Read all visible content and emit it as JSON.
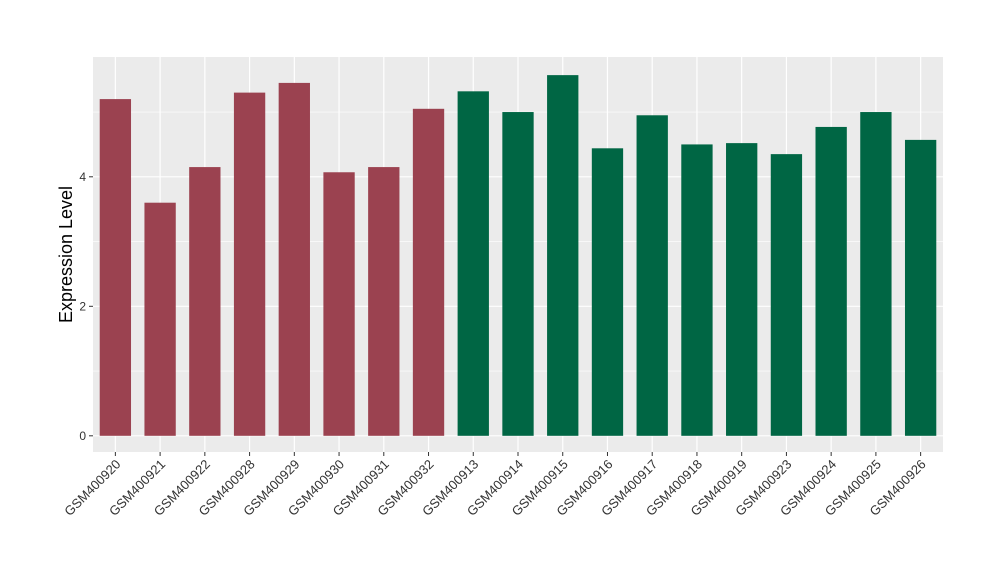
{
  "chart_data": {
    "type": "bar",
    "title": "",
    "xlabel": "",
    "ylabel": "Expression Level",
    "ylim": [
      -0.25,
      5.85
    ],
    "yticks": [
      0,
      2,
      4
    ],
    "grid": true,
    "legend": "none",
    "colors": {
      "group_a": "#9b4250",
      "group_b": "#006644",
      "panel_bg": "#ebebeb",
      "grid": "#ffffff"
    },
    "categories": [
      "GSM400920",
      "GSM400921",
      "GSM400922",
      "GSM400928",
      "GSM400929",
      "GSM400930",
      "GSM400931",
      "GSM400932",
      "GSM400913",
      "GSM400914",
      "GSM400915",
      "GSM400916",
      "GSM400917",
      "GSM400918",
      "GSM400919",
      "GSM400923",
      "GSM400924",
      "GSM400925",
      "GSM400926"
    ],
    "values": [
      5.2,
      3.6,
      4.15,
      5.3,
      5.45,
      4.07,
      4.15,
      5.05,
      5.32,
      5.0,
      5.57,
      4.44,
      4.95,
      4.5,
      4.52,
      4.35,
      4.77,
      5.0,
      4.57
    ],
    "groups": [
      "a",
      "a",
      "a",
      "a",
      "a",
      "a",
      "a",
      "a",
      "b",
      "b",
      "b",
      "b",
      "b",
      "b",
      "b",
      "b",
      "b",
      "b",
      "b"
    ]
  }
}
